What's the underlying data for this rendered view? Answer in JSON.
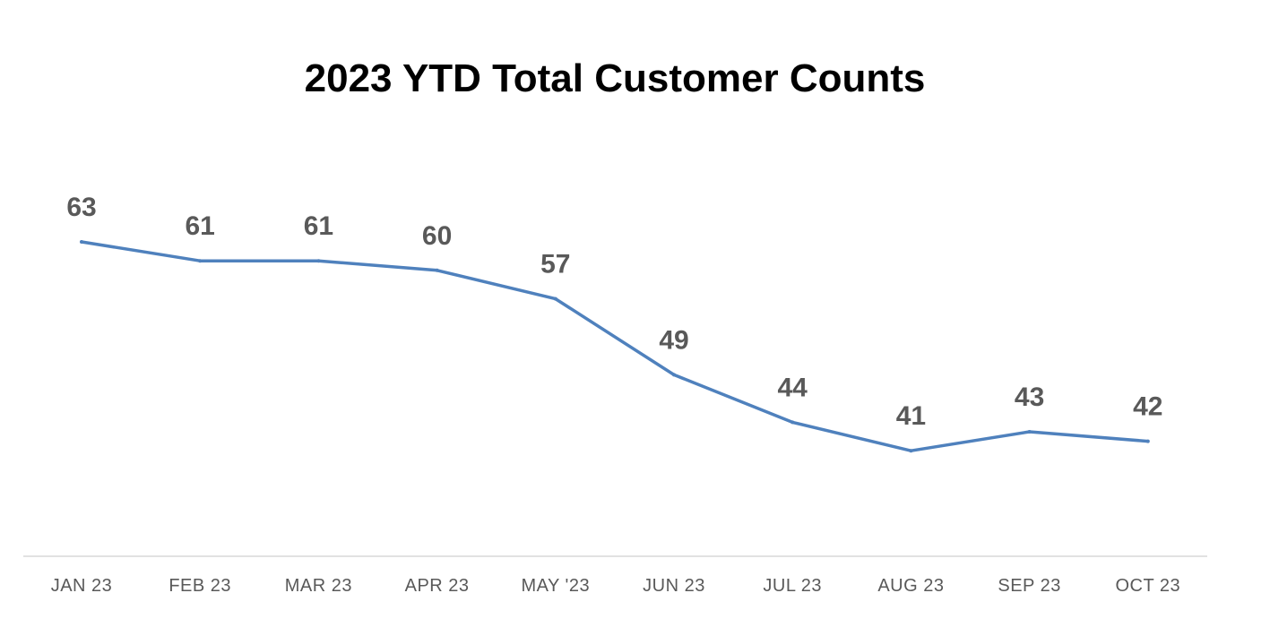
{
  "chart_data": {
    "type": "line",
    "title": "2023 YTD Total Customer Counts",
    "xlabel": "",
    "ylabel": "",
    "categories": [
      "JAN 23",
      "FEB 23",
      "MAR 23",
      "APR 23",
      "MAY '23",
      "JUN 23",
      "JUL 23",
      "AUG 23",
      "SEP 23",
      "OCT 23"
    ],
    "series": [
      {
        "values": [
          63,
          61,
          61,
          60,
          57,
          49,
          44,
          41,
          43,
          42
        ],
        "color": "#4f81bd"
      }
    ],
    "data_labels": true,
    "grid": false,
    "legend": "none",
    "axis_line_color": "#d9d9d9"
  }
}
